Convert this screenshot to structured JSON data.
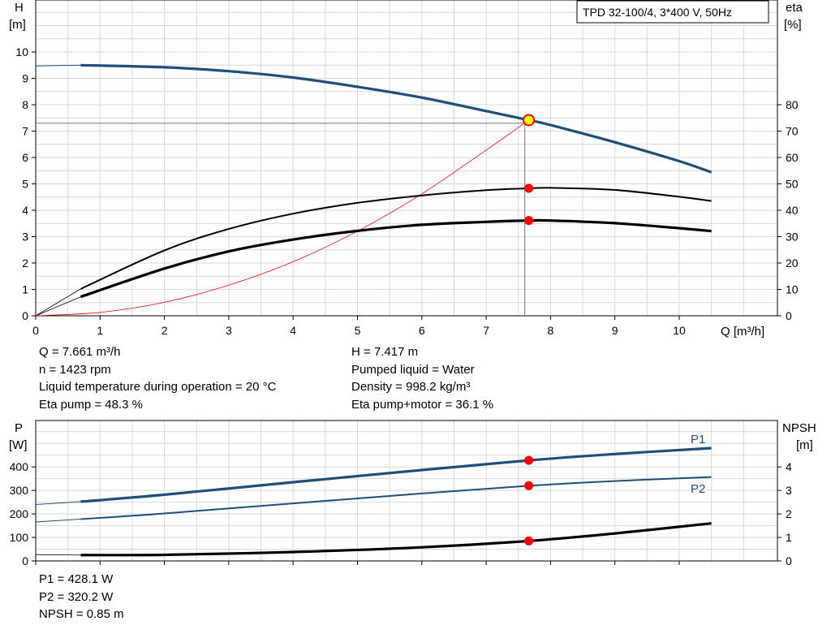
{
  "chart_data": [
    {
      "type": "line",
      "title": "TPD 32-100/4, 3*400 V, 50Hz",
      "xlabel": "Q [m³/h]",
      "ylabel_left": [
        "H",
        "[m]"
      ],
      "ylabel_right": [
        "eta",
        "[%]"
      ],
      "xlim": [
        0,
        11.5
      ],
      "ylim_left": [
        0,
        11
      ],
      "ylim_right": [
        0,
        110
      ],
      "x_ticks": [
        "0",
        "1",
        "2",
        "3",
        "4",
        "5",
        "6",
        "7",
        "8",
        "9",
        "10"
      ],
      "y_ticks_left": [
        "0",
        "1",
        "2",
        "3",
        "4",
        "5",
        "6",
        "7",
        "8",
        "9",
        "10"
      ],
      "y_ticks_right": [
        "0",
        "10",
        "20",
        "30",
        "40",
        "50",
        "60",
        "70",
        "80"
      ],
      "grid": true,
      "series": [
        {
          "role": "H",
          "axis": "left",
          "color": "#1f4e79",
          "x": [
            0.7,
            2,
            3,
            4,
            5,
            6,
            7,
            7.661,
            8,
            9,
            10,
            10.5
          ],
          "values": [
            9.5,
            9.42,
            9.27,
            9.03,
            8.68,
            8.27,
            7.76,
            7.417,
            7.23,
            6.58,
            5.86,
            5.44
          ]
        },
        {
          "role": "eta pump",
          "axis": "right",
          "color": "#000000",
          "x": [
            0.7,
            2,
            3,
            4,
            5,
            6,
            7,
            7.661,
            8,
            9,
            10,
            10.5
          ],
          "values": [
            10.2,
            24.8,
            32.9,
            38.7,
            42.8,
            45.6,
            47.6,
            48.3,
            48.5,
            47.7,
            45.1,
            43.5
          ]
        },
        {
          "role": "eta pump+motor",
          "axis": "right",
          "color": "#000000",
          "x": [
            0.7,
            2,
            3,
            4,
            5,
            6,
            7,
            7.661,
            8,
            9,
            10,
            10.5
          ],
          "values": [
            7.2,
            17.9,
            24.4,
            28.9,
            32.2,
            34.5,
            35.6,
            36.1,
            36.1,
            35.1,
            33.2,
            32.1
          ]
        },
        {
          "role": "system curve",
          "axis": "left",
          "color": "#ff0000",
          "x": [
            0,
            1,
            2,
            3,
            4,
            5,
            6,
            7,
            7.661
          ],
          "values": [
            0,
            0.13,
            0.51,
            1.16,
            2.05,
            3.21,
            4.62,
            6.28,
            7.417
          ]
        }
      ],
      "duty_point": {
        "x": 7.661,
        "H": 7.417,
        "eta_pump": 48.3,
        "eta_total": 36.1
      }
    },
    {
      "type": "line",
      "ylabel_left": [
        "P",
        "[W]"
      ],
      "ylabel_right": [
        "NPSH",
        "[m]"
      ],
      "xlim": [
        0,
        11.5
      ],
      "ylim_left": [
        0,
        500
      ],
      "ylim_right": [
        0,
        5
      ],
      "y_ticks_left": [
        "0",
        "100",
        "200",
        "300",
        "400"
      ],
      "y_ticks_right": [
        "0",
        "1",
        "2",
        "3",
        "4"
      ],
      "grid": true,
      "series": [
        {
          "name": "P1",
          "axis": "left",
          "color": "#1f4e79",
          "x": [
            0.7,
            2,
            4,
            6,
            7.661,
            9,
            10.5
          ],
          "values": [
            252,
            282,
            335,
            387,
            428,
            455,
            480
          ]
        },
        {
          "name": "P2",
          "axis": "left",
          "color": "#1f4e79",
          "x": [
            0.7,
            2,
            4,
            6,
            7.661,
            9,
            10.5
          ],
          "values": [
            178,
            202,
            245,
            287,
            320,
            340,
            357
          ]
        },
        {
          "role": "NPSH",
          "axis": "right",
          "color": "#000000",
          "x": [
            0.7,
            2,
            4,
            6,
            7.661,
            9,
            10.5
          ],
          "values": [
            0.25,
            0.26,
            0.38,
            0.58,
            0.85,
            1.17,
            1.6
          ]
        }
      ],
      "duty_point": {
        "x": 7.661,
        "P1": 428.1,
        "P2": 320.2,
        "NPSH": 0.85
      }
    }
  ],
  "info_top_left": [
    "Q = 7.661 m³/h",
    "n = 1423 rpm",
    "Liquid temperature during operation = 20 °C",
    "Eta pump = 48.3 %"
  ],
  "info_top_right": [
    "H = 7.417 m",
    "Pumped liquid = Water",
    "Density = 998.2 kg/m³",
    "Eta pump+motor = 36.1 %"
  ],
  "info_bottom_left": [
    "P1 = 428.1 W",
    "P2 = 320.2 W",
    "NPSH = 0.85 m"
  ]
}
